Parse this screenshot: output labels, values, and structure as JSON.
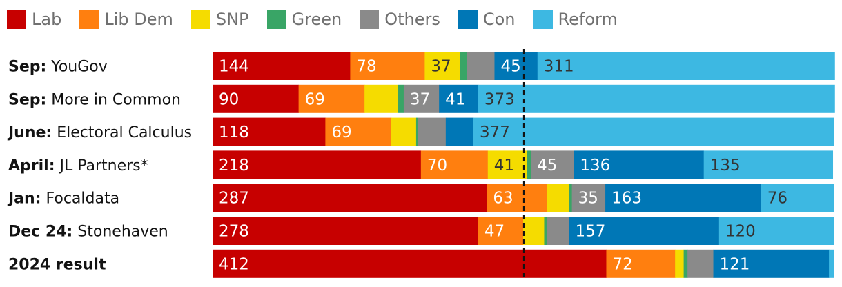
{
  "chart_data": {
    "type": "bar",
    "orientation": "horizontal",
    "stacked": true,
    "total_seats": 650,
    "majority_line": 326,
    "legend": [
      {
        "key": "lab",
        "label": "Lab",
        "color": "#c70000"
      },
      {
        "key": "libdem",
        "label": "Lib Dem",
        "color": "#ff7f0f"
      },
      {
        "key": "snp",
        "label": "SNP",
        "color": "#f5dc00"
      },
      {
        "key": "green",
        "label": "Green",
        "color": "#39a566"
      },
      {
        "key": "others",
        "label": "Others",
        "color": "#8a8a8a"
      },
      {
        "key": "con",
        "label": "Con",
        "color": "#0077b6"
      },
      {
        "key": "reform",
        "label": "Reform",
        "color": "#3db8e2"
      }
    ],
    "rows": [
      {
        "date": "Sep:",
        "source": "YouGov",
        "values": {
          "lab": 144,
          "libdem": 78,
          "snp": 37,
          "green": 7,
          "others": 29,
          "con": 45,
          "reform": 311
        },
        "labels": {
          "lab": "144",
          "libdem": "78",
          "snp": "37",
          "con": "45",
          "reform": "311"
        }
      },
      {
        "date": "Sep:",
        "source": "More in Common",
        "values": {
          "lab": 90,
          "libdem": 69,
          "snp": 35,
          "green": 6,
          "others": 37,
          "con": 41,
          "reform": 373
        },
        "labels": {
          "lab": "90",
          "libdem": "69",
          "others": "37",
          "con": "41",
          "reform": "373"
        }
      },
      {
        "date": "June:",
        "source": "Electoral Calculus",
        "values": {
          "lab": 118,
          "libdem": 69,
          "snp": 26,
          "green": 2,
          "others": 29,
          "con": 29,
          "reform": 377
        },
        "labels": {
          "lab": "118",
          "libdem": "69",
          "reform": "377"
        }
      },
      {
        "date": "April:",
        "source": "JL Partners*",
        "values": {
          "lab": 218,
          "libdem": 70,
          "snp": 41,
          "green": 4,
          "others": 45,
          "con": 136,
          "reform": 135
        },
        "labels": {
          "lab": "218",
          "libdem": "70",
          "snp": "41",
          "others": "45",
          "con": "136",
          "reform": "135"
        }
      },
      {
        "date": "Jan:",
        "source": "Focaldata",
        "values": {
          "lab": 287,
          "libdem": 63,
          "snp": 23,
          "green": 3,
          "others": 35,
          "con": 163,
          "reform": 76
        },
        "labels": {
          "lab": "287",
          "libdem": "63",
          "others": "35",
          "con": "163",
          "reform": "76"
        }
      },
      {
        "date": "Dec 24:",
        "source": "Stonehaven",
        "values": {
          "lab": 278,
          "libdem": 47,
          "snp": 22,
          "green": 3,
          "others": 23,
          "con": 157,
          "reform": 120
        },
        "labels": {
          "lab": "278",
          "libdem": "47",
          "con": "157",
          "reform": "120"
        }
      },
      {
        "date": "2024 result",
        "source": "",
        "values": {
          "lab": 412,
          "libdem": 72,
          "snp": 9,
          "green": 4,
          "others": 27,
          "con": 121,
          "reform": 5
        },
        "labels": {
          "lab": "412",
          "libdem": "72",
          "con": "121"
        }
      }
    ]
  }
}
